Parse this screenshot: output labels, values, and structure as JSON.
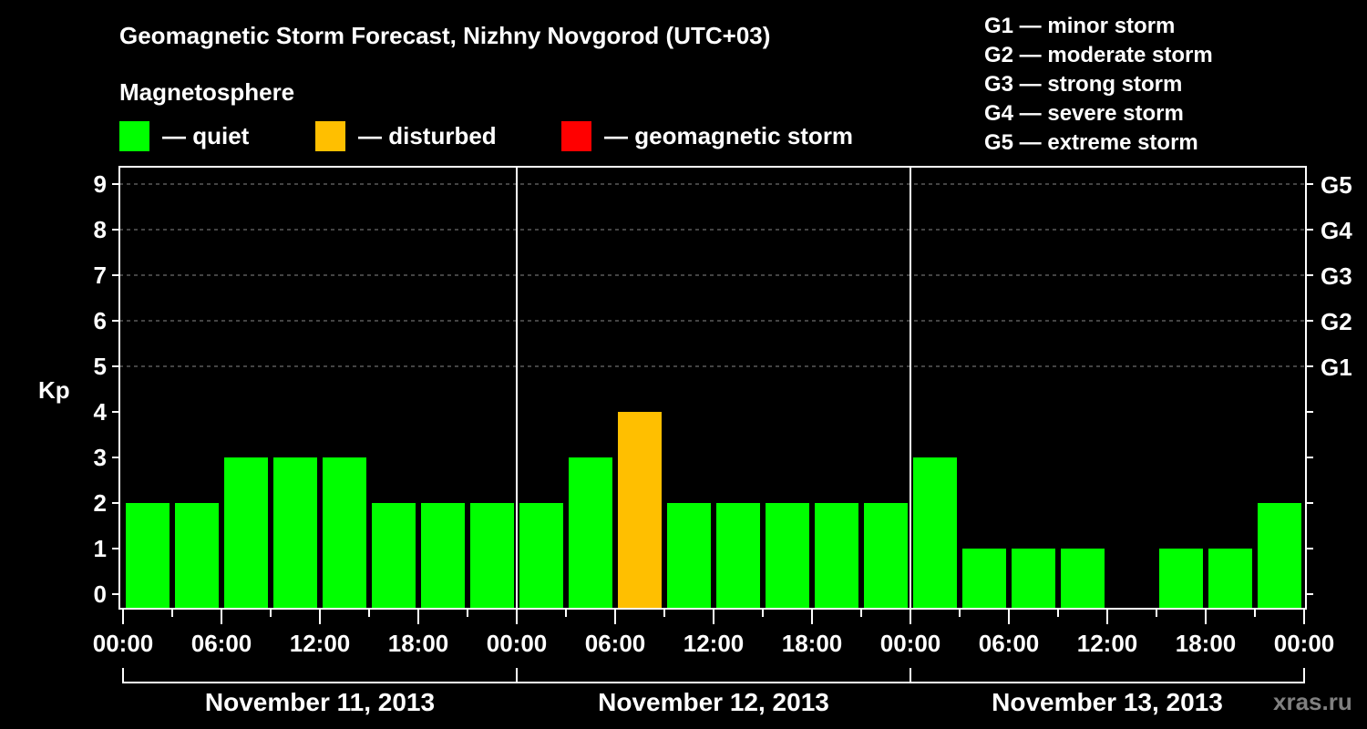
{
  "header": {
    "title": "Geomagnetic Storm Forecast, Nizhny Novgorod (UTC+03)",
    "subtitle": "Magnetosphere"
  },
  "legend": [
    {
      "label": "— quiet",
      "color": "#00ff00"
    },
    {
      "label": "— disturbed",
      "color": "#ffbf00"
    },
    {
      "label": "— geomagnetic storm",
      "color": "#ff0000"
    }
  ],
  "g_scale": [
    {
      "label": "G1 — minor storm"
    },
    {
      "label": "G2 — moderate storm"
    },
    {
      "label": "G3 — strong storm"
    },
    {
      "label": "G4 — severe storm"
    },
    {
      "label": "G5 — extreme storm"
    }
  ],
  "watermark": "xras.ru",
  "chart_data": {
    "type": "bar",
    "title": "Geomagnetic Storm Forecast, Nizhny Novgorod (UTC+03)",
    "xlabel": "",
    "ylabel": "Kp",
    "ylim": [
      0,
      9
    ],
    "yticks": [
      0,
      1,
      2,
      3,
      4,
      5,
      6,
      7,
      8,
      9
    ],
    "right_ticks": [
      {
        "kp": 5,
        "label": "G1"
      },
      {
        "kp": 6,
        "label": "G2"
      },
      {
        "kp": 7,
        "label": "G3"
      },
      {
        "kp": 8,
        "label": "G4"
      },
      {
        "kp": 9,
        "label": "G5"
      }
    ],
    "grid": "dashed horizontal at Kp 5-9",
    "xtick_labels": [
      "00:00",
      "06:00",
      "12:00",
      "18:00",
      "00:00",
      "06:00",
      "12:00",
      "18:00",
      "00:00",
      "06:00",
      "12:00",
      "18:00",
      "00:00"
    ],
    "days": [
      "November 11, 2013",
      "November 12, 2013",
      "November 13, 2013"
    ],
    "categories": [
      "Nov 11 00-03",
      "Nov 11 03-06",
      "Nov 11 06-09",
      "Nov 11 09-12",
      "Nov 11 12-15",
      "Nov 11 15-18",
      "Nov 11 18-21",
      "Nov 11 21-24",
      "Nov 12 00-03",
      "Nov 12 03-06",
      "Nov 12 06-09",
      "Nov 12 09-12",
      "Nov 12 12-15",
      "Nov 12 15-18",
      "Nov 12 18-21",
      "Nov 12 21-24",
      "Nov 13 00-03",
      "Nov 13 03-06",
      "Nov 13 06-09",
      "Nov 13 09-12",
      "Nov 13 12-15",
      "Nov 13 15-18",
      "Nov 13 18-21",
      "Nov 13 21-24"
    ],
    "values": [
      2,
      2,
      3,
      3,
      3,
      2,
      2,
      2,
      2,
      3,
      4,
      2,
      2,
      2,
      2,
      2,
      3,
      1,
      1,
      1,
      0,
      1,
      1,
      2
    ],
    "colors_by_level": {
      "quiet": "#00ff00",
      "disturbed": "#ffbf00",
      "storm": "#ff0000"
    }
  }
}
